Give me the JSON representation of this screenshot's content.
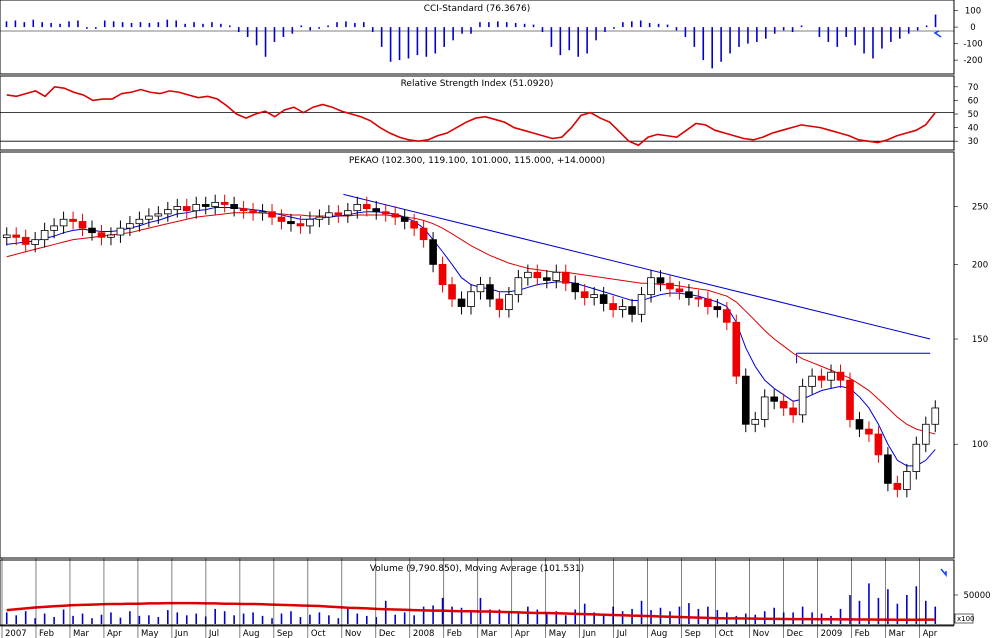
{
  "colors": {
    "cci": "#0000cc",
    "rsi": "#dd0000",
    "up": "#ffffff",
    "down_red": "#ee0000",
    "down_black": "#000000",
    "ma_blue": "#0000dd",
    "ma_red": "#dd0000",
    "trendline": "#0000cc",
    "volume_bar": "#0000cc",
    "volume_ma": "#dd0000",
    "arrow": "#1144ff"
  },
  "chart_data": [
    {
      "type": "bar",
      "title": "CCI-Standard (76.3676)",
      "yticks": [
        "100",
        "0",
        "-100",
        "-200"
      ],
      "ylim": [
        -260,
        140
      ],
      "values": [
        35,
        40,
        30,
        45,
        30,
        25,
        20,
        35,
        40,
        -10,
        -10,
        40,
        35,
        30,
        25,
        30,
        25,
        30,
        45,
        40,
        20,
        30,
        20,
        30,
        20,
        10,
        -30,
        -60,
        -110,
        -180,
        -90,
        -60,
        -40,
        10,
        -20,
        -10,
        10,
        30,
        35,
        25,
        30,
        -30,
        -120,
        -210,
        -200,
        -190,
        -170,
        -180,
        -160,
        -120,
        -80,
        -40,
        -40,
        30,
        30,
        35,
        30,
        25,
        20,
        15,
        -30,
        -120,
        -170,
        -140,
        -180,
        -160,
        -80,
        -30,
        -10,
        30,
        35,
        40,
        25,
        20,
        15,
        -20,
        -60,
        -120,
        -200,
        -250,
        -210,
        -160,
        -120,
        -100,
        -90,
        -70,
        -40,
        -20,
        -30,
        10,
        0,
        -60,
        -90,
        -120,
        -60,
        -110,
        -160,
        -190,
        -130,
        -90,
        -70,
        -40,
        -20,
        10,
        76
      ]
    },
    {
      "type": "line",
      "title": "Relative Strength Index (51.0920)",
      "yticks": [
        "70",
        "60",
        "50",
        "40",
        "30"
      ],
      "ylim": [
        25,
        75
      ],
      "reference_lines": [
        51,
        30
      ],
      "values": [
        64,
        63,
        65,
        67,
        63,
        70,
        69,
        66,
        64,
        60,
        61,
        61,
        65,
        66,
        68,
        66,
        65,
        67,
        66,
        64,
        62,
        63,
        61,
        56,
        50,
        47,
        50,
        52,
        48,
        53,
        55,
        51,
        55,
        57,
        55,
        52,
        50,
        48,
        45,
        40,
        36,
        33,
        31,
        30,
        31,
        34,
        36,
        40,
        44,
        47,
        48,
        46,
        44,
        40,
        38,
        36,
        34,
        32,
        33,
        40,
        49,
        51,
        47,
        44,
        37,
        30,
        27,
        33,
        35,
        34,
        33,
        38,
        43,
        42,
        38,
        36,
        34,
        32,
        31,
        33,
        36,
        38,
        40,
        42,
        41,
        40,
        38,
        36,
        34,
        31,
        30,
        29,
        31,
        34,
        36,
        38,
        42,
        51
      ]
    },
    {
      "type": "candlestick",
      "title": "PEKAO (102.300, 119.100, 101.000, 115.000, +14.0000)",
      "yticks": [
        "250",
        "200",
        "150",
        "100"
      ],
      "ylim": [
        65,
        290
      ],
      "x_month_labels": [
        "2007",
        "Feb",
        "Mar",
        "Apr",
        "May",
        "Jun",
        "Jul",
        "Aug",
        "Sep",
        "Oct",
        "Nov",
        "Dec",
        "2008",
        "Feb",
        "Mar",
        "Apr",
        "May",
        "Jun",
        "Jul",
        "Aug",
        "Sep",
        "Oct",
        "Nov",
        "Dec",
        "2009",
        "Feb",
        "Mar",
        "Apr"
      ],
      "close": [
        224,
        222,
        216,
        220,
        228,
        232,
        238,
        236,
        230,
        226,
        222,
        224,
        230,
        234,
        238,
        241,
        243,
        247,
        250,
        246,
        252,
        250,
        254,
        252,
        248,
        246,
        244,
        245,
        240,
        236,
        234,
        232,
        238,
        240,
        244,
        242,
        246,
        252,
        248,
        245,
        243,
        240,
        236,
        230,
        220,
        200,
        185,
        175,
        170,
        180,
        185,
        175,
        168,
        178,
        190,
        194,
        190,
        188,
        194,
        186,
        180,
        176,
        178,
        172,
        168,
        170,
        165,
        178,
        190,
        186,
        182,
        180,
        176,
        175,
        170,
        168,
        160,
        130,
        108,
        110,
        120,
        118,
        115,
        112,
        125,
        130,
        128,
        132,
        128,
        110,
        106,
        104,
        96,
        86,
        84,
        90,
        100,
        108,
        115
      ],
      "ma_short": [
        216,
        217,
        218,
        219,
        221,
        223,
        226,
        228,
        229,
        228,
        227,
        227,
        228,
        230,
        232,
        235,
        237,
        240,
        243,
        244,
        246,
        247,
        249,
        249,
        249,
        248,
        247,
        246,
        244,
        242,
        240,
        238,
        238,
        239,
        240,
        241,
        242,
        244,
        245,
        245,
        244,
        243,
        240,
        236,
        230,
        220,
        210,
        200,
        190,
        185,
        183,
        182,
        180,
        180,
        181,
        183,
        185,
        186,
        187,
        187,
        186,
        184,
        182,
        180,
        178,
        176,
        174,
        174,
        176,
        178,
        179,
        179,
        178,
        177,
        175,
        173,
        170,
        160,
        145,
        135,
        128,
        124,
        121,
        118,
        119,
        121,
        123,
        124,
        125,
        124,
        120,
        115,
        108,
        100,
        94,
        92,
        92,
        94,
        98
      ],
      "ma_long": [
        206,
        208,
        210,
        212,
        214,
        216,
        218,
        220,
        221,
        222,
        223,
        224,
        225,
        226,
        228,
        230,
        232,
        234,
        236,
        238,
        240,
        241,
        242,
        243,
        244,
        244,
        244,
        244,
        243,
        243,
        242,
        242,
        241,
        241,
        241,
        241,
        241,
        242,
        242,
        242,
        242,
        241,
        240,
        239,
        237,
        234,
        230,
        225,
        220,
        215,
        211,
        207,
        204,
        201,
        199,
        197,
        196,
        195,
        194,
        194,
        193,
        192,
        191,
        190,
        189,
        188,
        187,
        186,
        186,
        185,
        185,
        184,
        183,
        182,
        181,
        179,
        177,
        173,
        167,
        161,
        155,
        150,
        146,
        142,
        139,
        137,
        135,
        133,
        131,
        129,
        126,
        123,
        119,
        115,
        111,
        108,
        106,
        105,
        104
      ],
      "trendline": {
        "x": [
          0.36,
          0.975
        ],
        "y": [
          262,
          150
        ]
      },
      "hline": {
        "x": [
          0.835,
          0.975
        ],
        "y": 142
      }
    },
    {
      "type": "bar",
      "title": "Volume (9,790.850), Moving Average (101.531)",
      "yticks": [
        "50000"
      ],
      "axis_unit_label": "x100",
      "ylim": [
        0,
        100000
      ],
      "values": [
        20000,
        15000,
        22000,
        10000,
        18000,
        12000,
        25000,
        14000,
        18000,
        10000,
        16000,
        20000,
        11000,
        22000,
        14000,
        15000,
        12000,
        24000,
        20000,
        15000,
        18000,
        13000,
        26000,
        22000,
        15000,
        18000,
        20000,
        14000,
        10000,
        18000,
        22000,
        12000,
        16000,
        20000,
        15000,
        10000,
        26000,
        18000,
        14000,
        12000,
        40000,
        16000,
        20000,
        15000,
        30000,
        32000,
        45000,
        30000,
        28000,
        22000,
        45000,
        25000,
        25000,
        20000,
        22000,
        30000,
        25000,
        18000,
        22000,
        15000,
        25000,
        35000,
        20000,
        18000,
        30000,
        22000,
        26000,
        40000,
        24000,
        28000,
        22000,
        30000,
        36000,
        26000,
        30000,
        24000,
        20000,
        14000,
        18000,
        16000,
        22000,
        28000,
        20000,
        20000,
        30000,
        20000,
        18000,
        14000,
        26000,
        50000,
        40000,
        70000,
        45000,
        60000,
        35000,
        50000,
        65000,
        40000,
        30000
      ],
      "moving_average": [
        24000,
        25500,
        27000,
        28500,
        29500,
        30500,
        31500,
        32500,
        33000,
        33500,
        34000,
        34500,
        34500,
        35000,
        35000,
        35500,
        35500,
        36000,
        36000,
        36000,
        36000,
        35500,
        35500,
        35000,
        35000,
        34500,
        34500,
        34000,
        33500,
        33000,
        32500,
        32000,
        31500,
        31000,
        30000,
        29000,
        28000,
        27500,
        27000,
        26000,
        25500,
        25000,
        24500,
        24000,
        23500,
        23000,
        23000,
        22500,
        22000,
        22000,
        21500,
        21500,
        21000,
        20500,
        20000,
        19500,
        19000,
        19000,
        18500,
        18000,
        17500,
        17000,
        16500,
        16000,
        15500,
        15000,
        14500,
        14000,
        13500,
        13000,
        12500,
        12000,
        11500,
        11000,
        10500,
        10000,
        9800,
        9600,
        9400,
        9200,
        9000,
        8800,
        8600,
        8500,
        8400,
        8300,
        8200,
        8100,
        8000,
        7900,
        7800,
        7700,
        7600,
        7500,
        7400,
        7300,
        7300,
        7500,
        7600
      ]
    }
  ]
}
